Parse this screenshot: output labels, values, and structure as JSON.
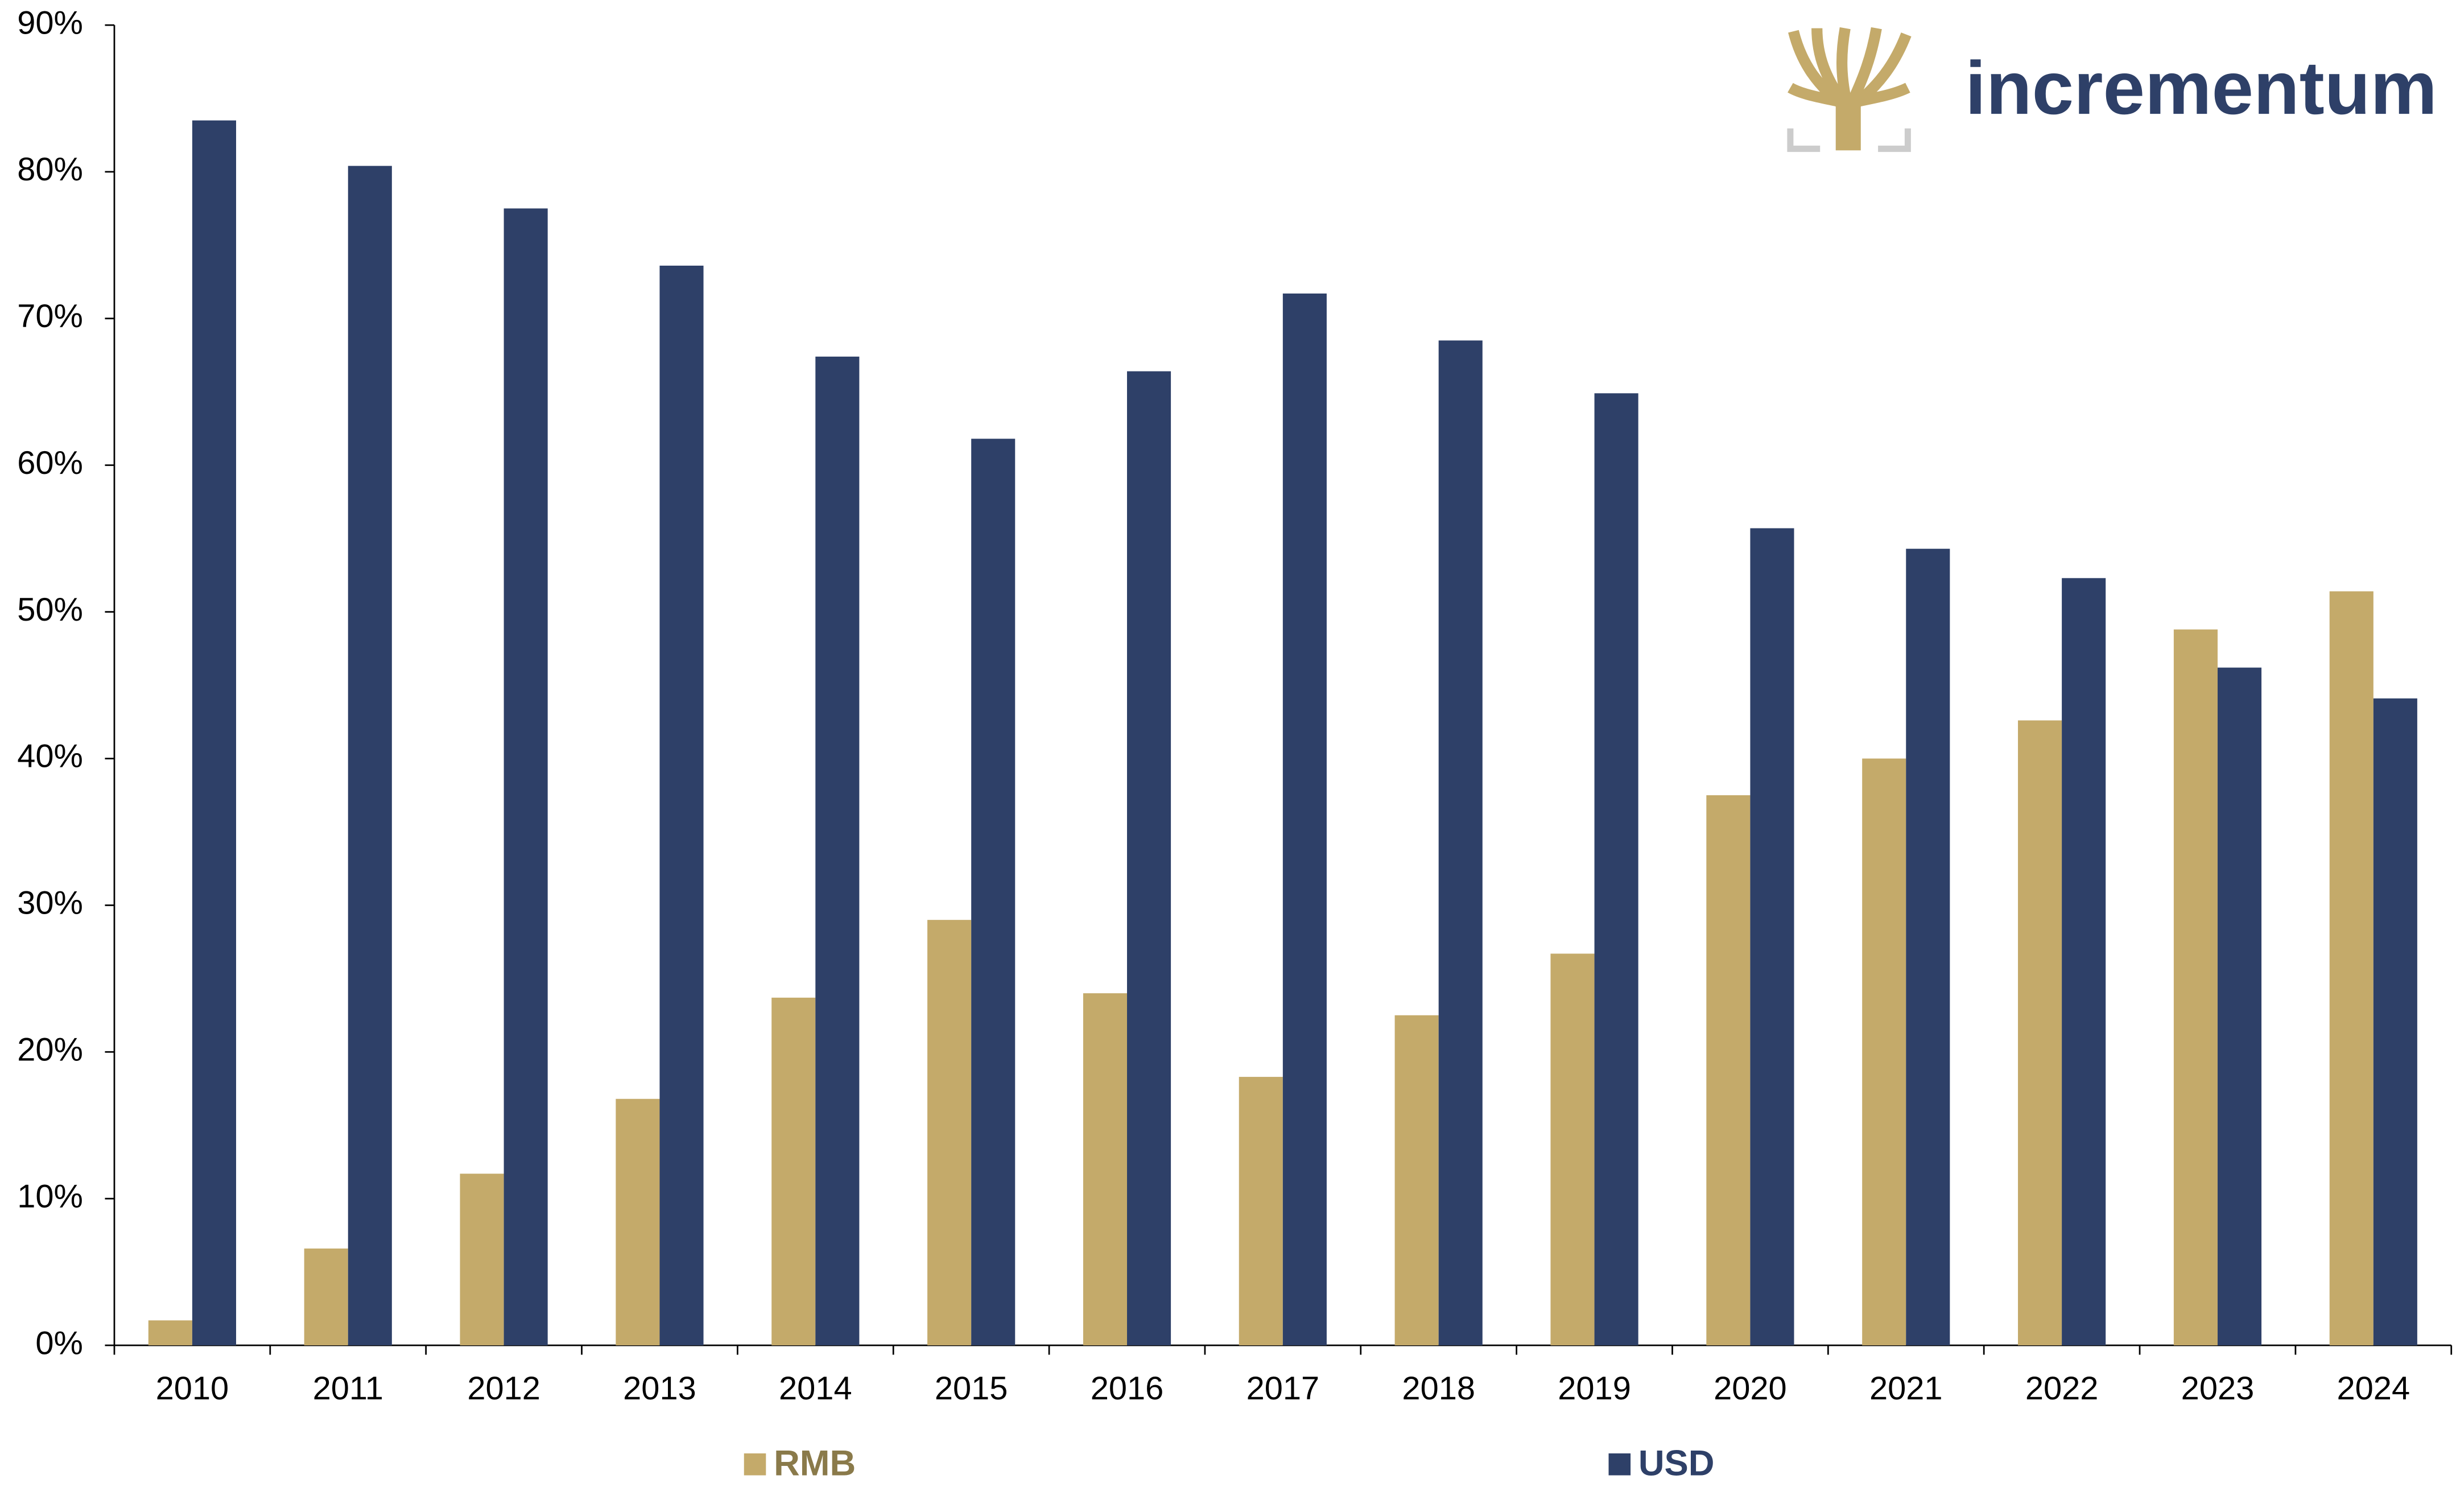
{
  "chart_data": {
    "type": "bar",
    "logo": "incrementum",
    "categories": [
      "2010",
      "2011",
      "2012",
      "2013",
      "2014",
      "2015",
      "2016",
      "2017",
      "2018",
      "2019",
      "2020",
      "2021",
      "2022",
      "2023",
      "2024"
    ],
    "series": [
      {
        "name": "RMB",
        "color": "#c4aa6a",
        "values": [
          1.7,
          6.6,
          11.7,
          16.8,
          23.7,
          29.0,
          24.0,
          18.3,
          22.5,
          26.7,
          37.5,
          40.0,
          42.6,
          48.8,
          51.4
        ]
      },
      {
        "name": "USD",
        "color": "#2e4068",
        "values": [
          83.5,
          80.4,
          77.5,
          73.6,
          67.4,
          61.8,
          66.4,
          71.7,
          68.5,
          64.9,
          55.7,
          54.3,
          52.3,
          46.2,
          44.1
        ]
      }
    ],
    "ylim": [
      0,
      90
    ],
    "yticks": [
      {
        "value": 0,
        "label": "0%"
      },
      {
        "value": 10,
        "label": "10%"
      },
      {
        "value": 20,
        "label": "20%"
      },
      {
        "value": 30,
        "label": "30%"
      },
      {
        "value": 40,
        "label": "40%"
      },
      {
        "value": 50,
        "label": "50%"
      },
      {
        "value": 60,
        "label": "60%"
      },
      {
        "value": 70,
        "label": "70%"
      },
      {
        "value": 80,
        "label": "80%"
      },
      {
        "value": 90,
        "label": "90%"
      }
    ],
    "grid": false,
    "legend": "bottom"
  }
}
